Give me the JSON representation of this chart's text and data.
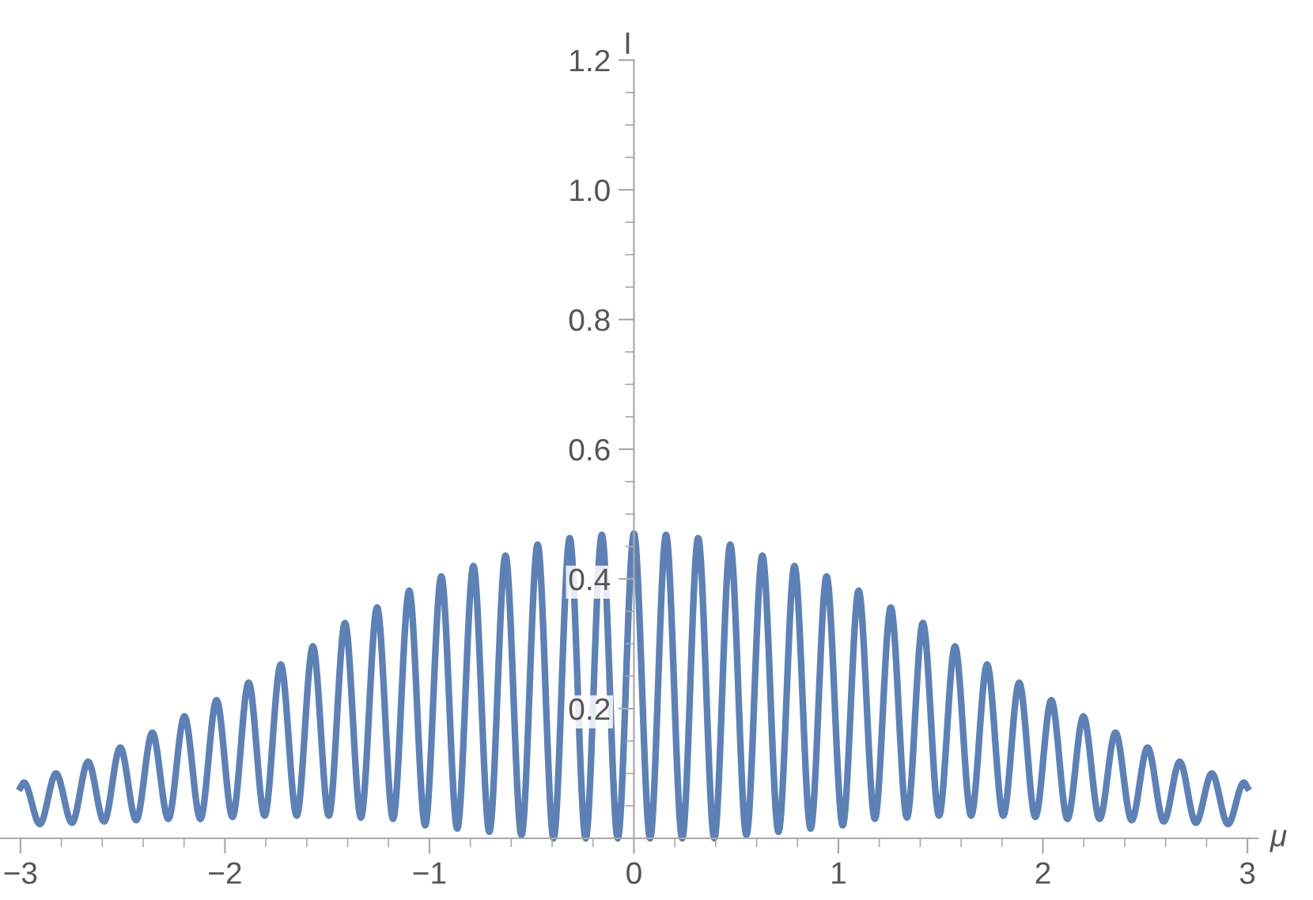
{
  "chart_data": {
    "type": "line",
    "xlabel": "μ",
    "ylabel": "I",
    "xlim": [
      -3.1,
      3.05
    ],
    "ylim": [
      0,
      1.2
    ],
    "xticks": [
      {
        "value": -3,
        "label": "−3"
      },
      {
        "value": -2,
        "label": "−2"
      },
      {
        "value": -1,
        "label": "−1"
      },
      0,
      1,
      2,
      3
    ],
    "yticks": [
      0.2,
      0.4,
      0.6,
      0.8,
      {
        "value": 1.0,
        "label": "1.0"
      },
      1.2
    ],
    "grid": false,
    "marker": "none",
    "line_style": "solid",
    "series": [
      {
        "color": "#5e81b5",
        "x": [
          -3,
          -2.983,
          -2.905,
          -2.826,
          -2.748,
          -2.669,
          -2.591,
          -2.512,
          -2.434,
          -2.355,
          -2.277,
          -2.198,
          -2.12,
          -2.041,
          -1.963,
          -1.884,
          -1.806,
          -1.727,
          -1.649,
          -1.57,
          -1.492,
          -1.413,
          -1.335,
          -1.256,
          -1.178,
          -1.099,
          -1.021,
          -0.942,
          -0.864,
          -0.785,
          -0.707,
          -0.628,
          -0.55,
          -0.471,
          -0.393,
          -0.314,
          -0.236,
          -0.157,
          -0.079,
          0,
          0.079,
          0.157,
          0.236,
          0.314,
          0.393,
          0.471,
          0.55,
          0.628,
          0.707,
          0.785,
          0.864,
          0.942,
          1.021,
          1.099,
          1.178,
          1.256,
          1.335,
          1.413,
          1.492,
          1.57,
          1.649,
          1.727,
          1.806,
          1.884,
          1.963,
          2.041,
          2.12,
          2.198,
          2.277,
          2.355,
          2.434,
          2.512,
          2.591,
          2.669,
          2.748,
          2.826,
          2.905,
          2.983,
          3
        ],
        "values": [
          0.078,
          0.086,
          0.022,
          0.1,
          0.024,
          0.118,
          0.026,
          0.14,
          0.028,
          0.163,
          0.03,
          0.188,
          0.03,
          0.213,
          0.033,
          0.24,
          0.035,
          0.268,
          0.035,
          0.296,
          0.035,
          0.332,
          0.032,
          0.356,
          0.03,
          0.382,
          0.02,
          0.404,
          0.015,
          0.42,
          0.01,
          0.436,
          0.005,
          0.453,
          0,
          0.463,
          0,
          0.468,
          0,
          0.47,
          0,
          0.468,
          0,
          0.463,
          0,
          0.453,
          0.005,
          0.436,
          0.01,
          0.42,
          0.015,
          0.404,
          0.02,
          0.382,
          0.03,
          0.356,
          0.032,
          0.332,
          0.035,
          0.296,
          0.035,
          0.268,
          0.035,
          0.24,
          0.033,
          0.213,
          0.03,
          0.188,
          0.03,
          0.163,
          0.028,
          0.14,
          0.026,
          0.118,
          0.024,
          0.1,
          0.022,
          0.086,
          0.078
        ]
      }
    ]
  }
}
